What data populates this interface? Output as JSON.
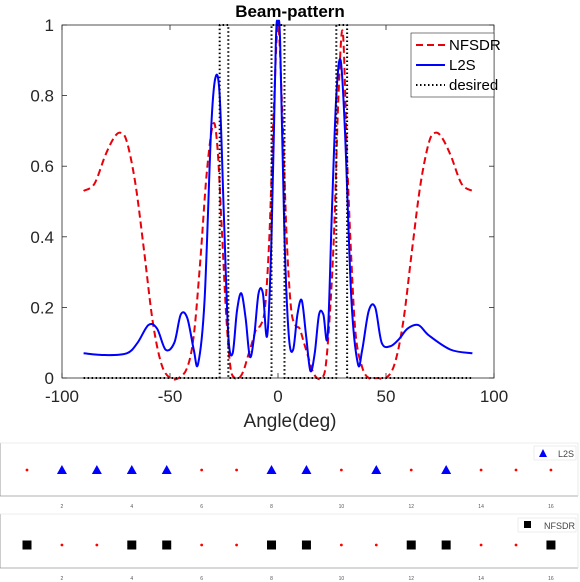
{
  "chart_data": [
    {
      "type": "line",
      "title": "Beam-pattern",
      "xlabel": "Angle(deg)",
      "ylabel": "",
      "xlim": [
        -100,
        100
      ],
      "ylim": [
        0,
        1
      ],
      "xticks": [
        "-100",
        "-50",
        "0",
        "50",
        "100"
      ],
      "yticks": [
        "0",
        "0.2",
        "0.4",
        "0.6",
        "0.8",
        "1"
      ],
      "xtick_values": [
        -100,
        -50,
        0,
        50,
        100
      ],
      "ytick_values": [
        0,
        0.2,
        0.4,
        0.6,
        0.8,
        1
      ],
      "legend_position": "top-right",
      "series": [
        {
          "name": "NFSDR",
          "style": "dashed",
          "color": "#e8000b",
          "x": [
            -90,
            -85,
            -80,
            -76,
            -73,
            -70,
            -66,
            -62,
            -58,
            -54,
            -50,
            -46,
            -42,
            -39,
            -36,
            -33,
            -30,
            -28,
            -26,
            -24,
            -22,
            -20,
            -18,
            -16,
            -14,
            -12,
            -10,
            -8,
            -6,
            -4,
            -2,
            0,
            2,
            4,
            6,
            8,
            10,
            12,
            14,
            16,
            18,
            20,
            22,
            24,
            26,
            28,
            30,
            32,
            34,
            36,
            39,
            42,
            46,
            50,
            54,
            58,
            62,
            66,
            70,
            73,
            76,
            80,
            85,
            90
          ],
          "y": [
            0.53,
            0.55,
            0.63,
            0.68,
            0.695,
            0.67,
            0.55,
            0.36,
            0.16,
            0.04,
            0.0,
            0.0,
            0.03,
            0.12,
            0.33,
            0.58,
            0.72,
            0.65,
            0.42,
            0.18,
            0.03,
            0.0,
            0.0,
            0.02,
            0.06,
            0.1,
            0.14,
            0.15,
            0.2,
            0.4,
            0.75,
            1.0,
            0.75,
            0.4,
            0.2,
            0.15,
            0.14,
            0.1,
            0.06,
            0.02,
            0.0,
            0.0,
            0.03,
            0.18,
            0.42,
            0.8,
            0.98,
            0.62,
            0.33,
            0.12,
            0.03,
            0.0,
            0.0,
            0.0,
            0.04,
            0.16,
            0.36,
            0.55,
            0.67,
            0.695,
            0.68,
            0.63,
            0.55,
            0.53
          ]
        },
        {
          "name": "L2S",
          "style": "solid",
          "color": "#0000ff",
          "x": [
            -90,
            -80,
            -70,
            -65,
            -60,
            -56,
            -52,
            -48,
            -45,
            -42,
            -39,
            -37,
            -34,
            -31,
            -29,
            -27,
            -25,
            -23,
            -21,
            -19,
            -17,
            -15,
            -13,
            -11,
            -9,
            -7,
            -5,
            -3,
            -1,
            0,
            1,
            3,
            5,
            7,
            9,
            11,
            13,
            15,
            17,
            19,
            21,
            23,
            25,
            27,
            29,
            31,
            34,
            37,
            39,
            42,
            45,
            48,
            52,
            56,
            60,
            65,
            70,
            80,
            90
          ],
          "y": [
            0.07,
            0.065,
            0.07,
            0.1,
            0.15,
            0.14,
            0.08,
            0.1,
            0.18,
            0.17,
            0.08,
            0.04,
            0.22,
            0.7,
            0.85,
            0.8,
            0.45,
            0.12,
            0.07,
            0.19,
            0.24,
            0.17,
            0.06,
            0.12,
            0.24,
            0.24,
            0.12,
            0.4,
            0.95,
            1.0,
            0.95,
            0.4,
            0.12,
            0.08,
            0.18,
            0.22,
            0.12,
            0.02,
            0.07,
            0.18,
            0.18,
            0.12,
            0.48,
            0.8,
            0.9,
            0.7,
            0.22,
            0.04,
            0.08,
            0.19,
            0.2,
            0.1,
            0.09,
            0.11,
            0.14,
            0.15,
            0.12,
            0.08,
            0.07
          ]
        },
        {
          "name": "desired",
          "style": "dotted",
          "color": "#000000",
          "x": [
            -90,
            -27,
            -27,
            -23,
            -23,
            -3,
            -3,
            3,
            3,
            27,
            27,
            32,
            32,
            90
          ],
          "y": [
            0,
            0,
            1,
            1,
            0,
            0,
            1,
            1,
            0,
            0,
            1,
            1,
            0,
            0
          ]
        }
      ]
    },
    {
      "type": "scatter",
      "title": "",
      "xticks": [
        "2",
        "4",
        "6",
        "8",
        "10",
        "12",
        "14",
        "16"
      ],
      "legend_position": "top-right",
      "series": [
        {
          "name": "L2S",
          "marker": "triangle",
          "color": "#0000ff",
          "x": [
            2,
            3,
            4,
            5,
            8,
            9,
            11,
            13
          ]
        },
        {
          "name": "",
          "marker": "dot",
          "color": "#ff0000",
          "x": [
            1,
            6,
            7,
            10,
            12,
            14,
            15,
            16
          ]
        }
      ]
    },
    {
      "type": "scatter",
      "title": "",
      "xticks": [
        "2",
        "4",
        "6",
        "8",
        "10",
        "12",
        "14",
        "16"
      ],
      "legend_position": "top-right",
      "series": [
        {
          "name": "NFSDR",
          "marker": "square",
          "color": "#000000",
          "x": [
            1,
            4,
            5,
            8,
            9,
            12,
            13,
            16
          ]
        },
        {
          "name": "",
          "marker": "dot",
          "color": "#ff0000",
          "x": [
            2,
            3,
            6,
            7,
            10,
            11,
            14,
            15
          ]
        }
      ]
    }
  ]
}
